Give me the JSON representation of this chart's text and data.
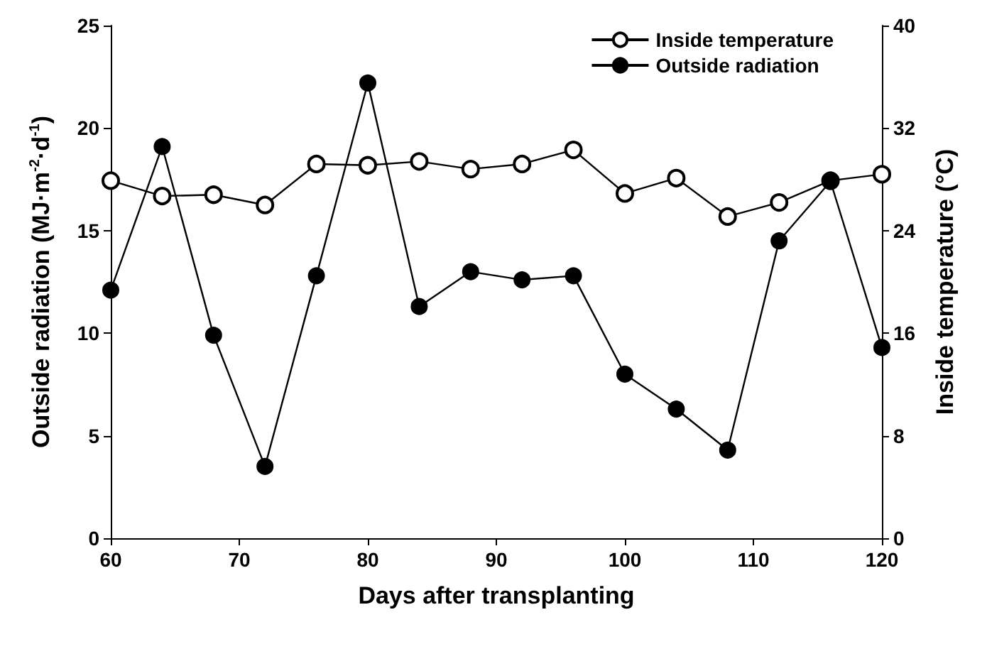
{
  "chart_data": {
    "type": "line",
    "xlabel": "Days after transplanting",
    "ylabel": "Outside radiation (MJ·m$^{-2}$·d$^{-1}$)",
    "y2label": "Inside temperature (°C)",
    "x": [
      60,
      64,
      68,
      72,
      76,
      80,
      84,
      88,
      92,
      96,
      100,
      104,
      108,
      112,
      116,
      120
    ],
    "series": [
      {
        "name": "Inside temperature",
        "color": "#000000",
        "axis": "y2",
        "marker": "circle",
        "values": [
          27.9,
          26.7,
          26.8,
          26.0,
          29.2,
          29.1,
          29.4,
          28.8,
          29.2,
          30.3,
          26.9,
          28.1,
          25.1,
          26.2,
          27.9,
          28.4
        ]
      },
      {
        "name": "Outside radiation",
        "color": "#000000",
        "axis": "y",
        "marker": "circle",
        "values": [
          12.1,
          19.1,
          9.9,
          3.5,
          12.8,
          22.2,
          11.3,
          13.0,
          12.6,
          12.8,
          8.0,
          6.3,
          4.3,
          14.5,
          17.4,
          9.3
        ]
      }
    ],
    "xlim": [
      60,
      120
    ],
    "xticks": [
      60,
      70,
      80,
      90,
      100,
      110,
      120
    ],
    "ylim": [
      0,
      25
    ],
    "yticks": [
      0,
      5,
      10,
      15,
      20,
      25
    ],
    "y2lim": [
      0,
      40
    ],
    "y2ticks": [
      0,
      8,
      16,
      24,
      32,
      40
    ],
    "legend": "top right",
    "grid": false,
    "line_style": "solid"
  }
}
